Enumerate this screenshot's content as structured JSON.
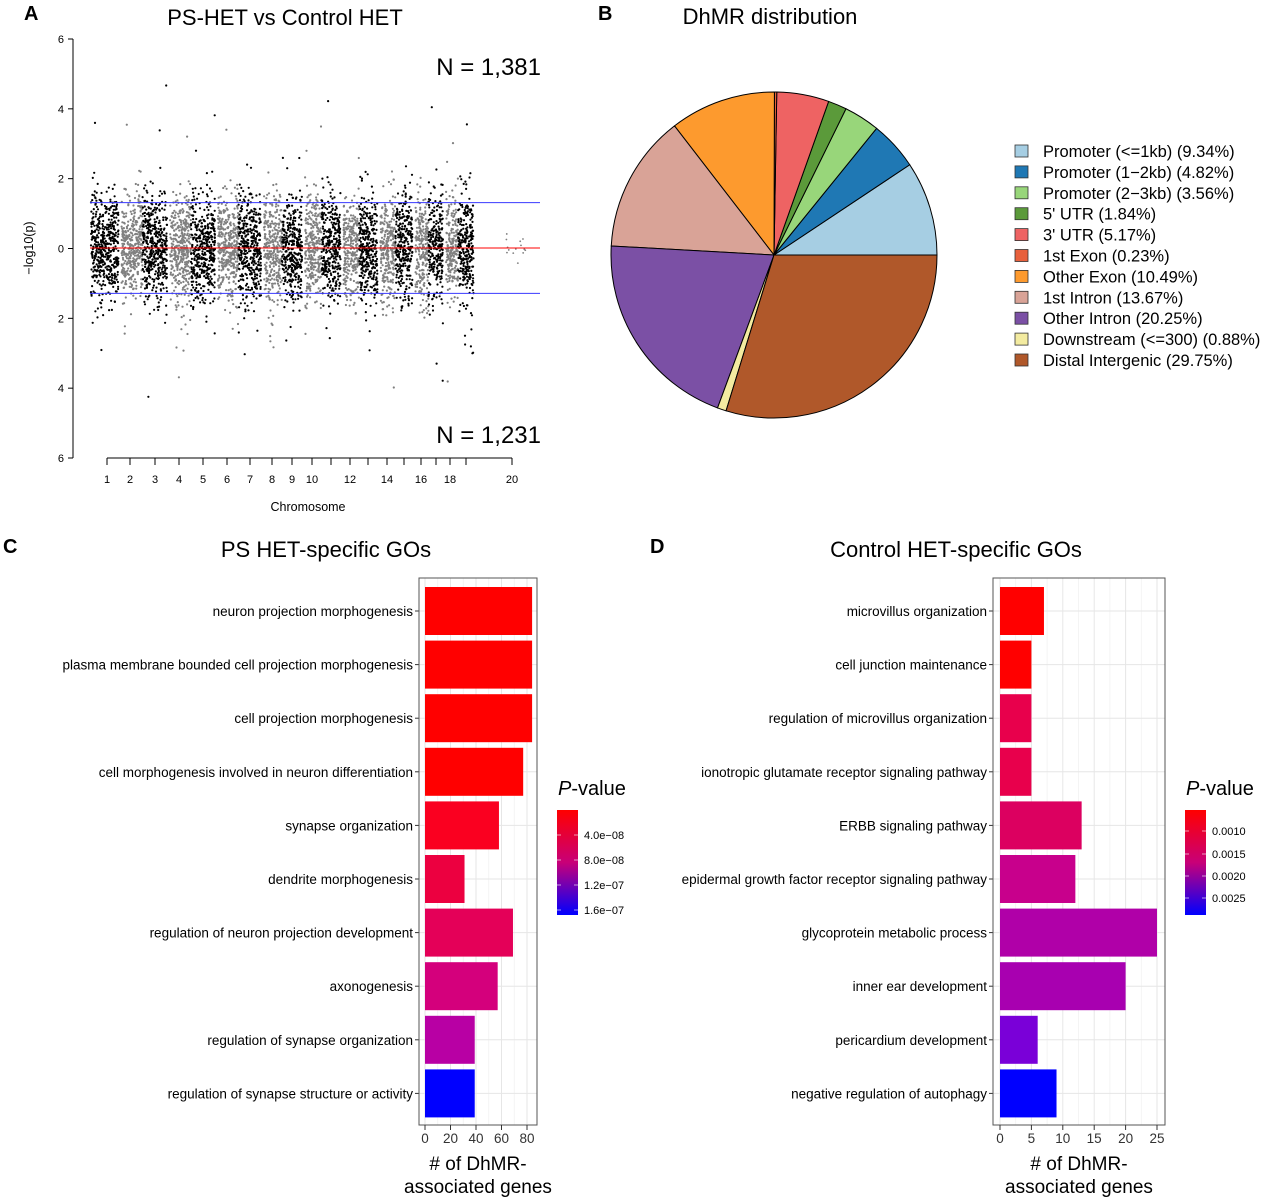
{
  "panels": {
    "A": {
      "letter": "A",
      "title": "PS-HET vs Control HET"
    },
    "B": {
      "letter": "B",
      "title": "DhMR distribution"
    },
    "C": {
      "letter": "C",
      "title": "PS HET-specific GOs"
    },
    "D": {
      "letter": "D",
      "title": "Control HET-specific GOs"
    }
  },
  "chart_data": [
    {
      "panel": "A",
      "type": "scatter",
      "title": "PS-HET vs Control HET",
      "xlabel": "Chromosome",
      "ylabel": "−log10(p)",
      "ylim": [
        -6,
        6
      ],
      "y_tick_labels": [
        "6",
        "4",
        "2",
        "0",
        "2",
        "4",
        "6"
      ],
      "x_tick_labels": [
        "1",
        "2",
        "3",
        "4",
        "5",
        "6",
        "7",
        "8",
        "9",
        "10",
        "12",
        "14",
        "16",
        "18",
        "20"
      ],
      "chromosomes": 20,
      "point_colors": [
        "#000000",
        "#808080"
      ],
      "threshold_lines": [
        {
          "y": 1.3,
          "color": "#3a3aff"
        },
        {
          "y": -1.3,
          "color": "#3a3aff"
        },
        {
          "y": 0,
          "color": "#ff0000"
        }
      ],
      "annotations": {
        "upper": "N = 1,381",
        "lower": "N = 1,231"
      },
      "grid": false
    },
    {
      "panel": "B",
      "type": "pie",
      "title": "DhMR distribution",
      "legend_position": "right",
      "slices": [
        {
          "label": "Promoter (<=1kb) (9.34%)",
          "value": 9.34,
          "color": "#a6cee3"
        },
        {
          "label": "Promoter (1−2kb) (4.82%)",
          "value": 4.82,
          "color": "#1f78b4"
        },
        {
          "label": "Promoter (2−3kb) (3.56%)",
          "value": 3.56,
          "color": "#98d67a"
        },
        {
          "label": "5' UTR (1.84%)",
          "value": 1.84,
          "color": "#5b9a3a"
        },
        {
          "label": "3' UTR (5.17%)",
          "value": 5.17,
          "color": "#ee6363"
        },
        {
          "label": "1st Exon (0.23%)",
          "value": 0.23,
          "color": "#e8603c"
        },
        {
          "label": "Other Exon (10.49%)",
          "value": 10.49,
          "color": "#fd9a2e"
        },
        {
          "label": "1st Intron (13.67%)",
          "value": 13.67,
          "color": "#d9a397"
        },
        {
          "label": "Other Intron (20.25%)",
          "value": 20.25,
          "color": "#7b50a5"
        },
        {
          "label": "Downstream (<=300) (0.88%)",
          "value": 0.88,
          "color": "#f3eba0"
        },
        {
          "label": "Distal Intergenic (29.75%)",
          "value": 29.75,
          "color": "#b0582a"
        }
      ]
    },
    {
      "panel": "C",
      "type": "bar",
      "orientation": "horizontal",
      "title": "PS HET-specific GOs",
      "xlabel": "# of DhMR-associated genes",
      "xlabel_lines": [
        "# of DhMR-",
        "associated genes"
      ],
      "xlim": [
        0,
        88
      ],
      "x_ticks": [
        0,
        20,
        40,
        60,
        80
      ],
      "categories": [
        "neuron projection morphogenesis",
        "plasma membrane bounded cell projection morphogenesis",
        "cell projection morphogenesis",
        "cell morphogenesis involved in neuron differentiation",
        "synapse organization",
        "dendrite morphogenesis",
        "regulation of neuron projection development",
        "axonogenesis",
        "regulation of synapse organization",
        "regulation of synapse structure or activity"
      ],
      "values": [
        84,
        84,
        84,
        77,
        58,
        31,
        69,
        57,
        39,
        39
      ],
      "colors": [
        "#ff0000",
        "#ff0000",
        "#ff0000",
        "#ff0000",
        "#fa0020",
        "#ec0040",
        "#e40058",
        "#d4007c",
        "#b800a4",
        "#0000ff"
      ],
      "colorbar": {
        "title_italic": "P",
        "title_rest": "-value",
        "labels": [
          "4.0e−08",
          "8.0e−08",
          "1.2e−07",
          "1.6e−07"
        ],
        "low_color": "#ff0000",
        "high_color": "#0000ff"
      },
      "grid": true
    },
    {
      "panel": "D",
      "type": "bar",
      "orientation": "horizontal",
      "title": "Control HET-specific GOs",
      "xlabel": "# of DhMR-associated genes",
      "xlabel_lines": [
        "# of DhMR-",
        "associated genes"
      ],
      "xlim": [
        0,
        26.2
      ],
      "x_ticks": [
        0,
        5,
        10,
        15,
        20,
        25
      ],
      "categories": [
        "microvillus organization",
        "cell junction maintenance",
        "regulation of microvillus organization",
        "ionotropic glutamate receptor signaling pathway",
        "ERBB signaling pathway",
        "epidermal growth factor receptor signaling pathway",
        "glycoprotein metabolic process",
        "inner ear development",
        "pericardium development",
        "negative regulation of autophagy"
      ],
      "values": [
        7,
        5,
        5,
        5,
        13,
        12,
        25,
        20,
        6,
        9
      ],
      "colors": [
        "#ff0000",
        "#ff0000",
        "#e8004c",
        "#e8004c",
        "#dc0060",
        "#c8008c",
        "#b000a8",
        "#a800b0",
        "#7a00d8",
        "#0000ff"
      ],
      "colorbar": {
        "title_italic": "P",
        "title_rest": "-value",
        "labels": [
          "0.0010",
          "0.0015",
          "0.0020",
          "0.0025"
        ],
        "low_color": "#ff0000",
        "high_color": "#0000ff"
      },
      "grid": true
    }
  ]
}
